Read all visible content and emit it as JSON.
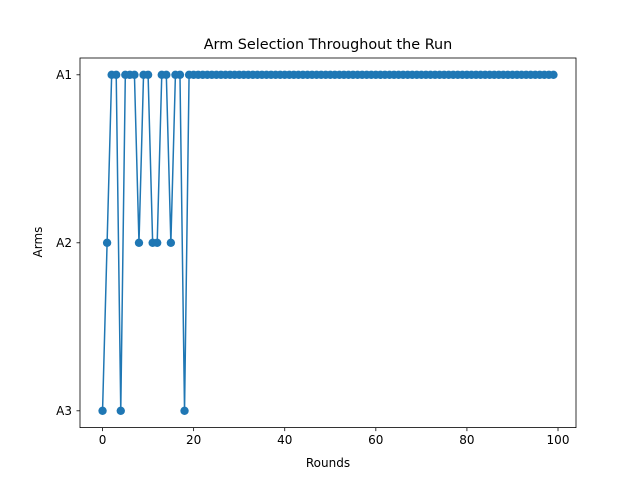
{
  "chart_data": {
    "type": "line",
    "title": "Arm Selection Throughout the Run",
    "xlabel": "Rounds",
    "ylabel": "Arms",
    "xlim": [
      -4.95,
      103.95
    ],
    "x_ticks": [
      0,
      20,
      40,
      60,
      80,
      100
    ],
    "y_categories": [
      "A3",
      "A2",
      "A1"
    ],
    "ylim": [
      -0.1,
      2.1
    ],
    "grid": false,
    "legend": "none",
    "marker": "circle",
    "series": [
      {
        "color": "#1f77b4",
        "x": [
          0,
          1,
          2,
          3,
          4,
          5,
          6,
          7,
          8,
          9,
          10,
          11,
          12,
          13,
          14,
          15,
          16,
          17,
          18,
          19,
          20,
          21,
          22,
          23,
          24,
          25,
          26,
          27,
          28,
          29,
          30,
          31,
          32,
          33,
          34,
          35,
          36,
          37,
          38,
          39,
          40,
          41,
          42,
          43,
          44,
          45,
          46,
          47,
          48,
          49,
          50,
          51,
          52,
          53,
          54,
          55,
          56,
          57,
          58,
          59,
          60,
          61,
          62,
          63,
          64,
          65,
          66,
          67,
          68,
          69,
          70,
          71,
          72,
          73,
          74,
          75,
          76,
          77,
          78,
          79,
          80,
          81,
          82,
          83,
          84,
          85,
          86,
          87,
          88,
          89,
          90,
          91,
          92,
          93,
          94,
          95,
          96,
          97,
          98,
          99
        ],
        "values": [
          "A3",
          "A2",
          "A1",
          "A1",
          "A3",
          "A1",
          "A1",
          "A1",
          "A2",
          "A1",
          "A1",
          "A2",
          "A2",
          "A1",
          "A1",
          "A2",
          "A1",
          "A1",
          "A3",
          "A1",
          "A1",
          "A1",
          "A1",
          "A1",
          "A1",
          "A1",
          "A1",
          "A1",
          "A1",
          "A1",
          "A1",
          "A1",
          "A1",
          "A1",
          "A1",
          "A1",
          "A1",
          "A1",
          "A1",
          "A1",
          "A1",
          "A1",
          "A1",
          "A1",
          "A1",
          "A1",
          "A1",
          "A1",
          "A1",
          "A1",
          "A1",
          "A1",
          "A1",
          "A1",
          "A1",
          "A1",
          "A1",
          "A1",
          "A1",
          "A1",
          "A1",
          "A1",
          "A1",
          "A1",
          "A1",
          "A1",
          "A1",
          "A1",
          "A1",
          "A1",
          "A1",
          "A1",
          "A1",
          "A1",
          "A1",
          "A1",
          "A1",
          "A1",
          "A1",
          "A1",
          "A1",
          "A1",
          "A1",
          "A1",
          "A1",
          "A1",
          "A1",
          "A1",
          "A1",
          "A1",
          "A1",
          "A1",
          "A1",
          "A1",
          "A1",
          "A1",
          "A1",
          "A1",
          "A1",
          "A1"
        ]
      }
    ]
  }
}
